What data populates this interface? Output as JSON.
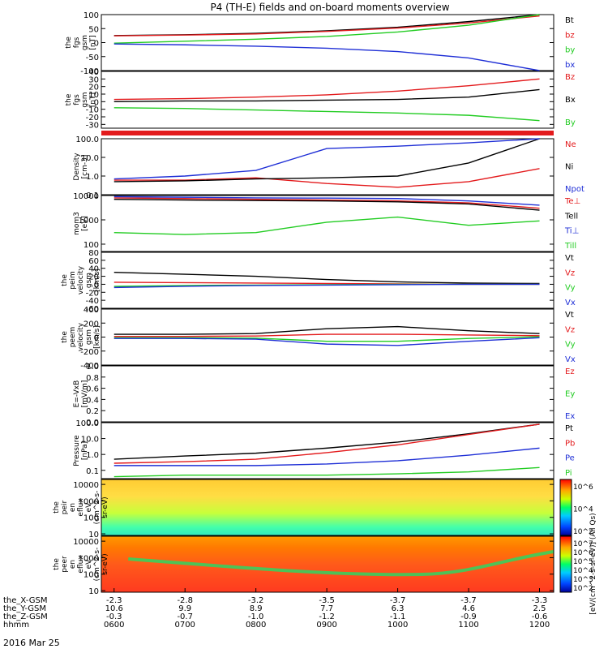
{
  "title": "P4 (TH-E) fields and on-board moments overview",
  "footer_date": "2016 Mar 25",
  "colors": {
    "black": "#000000",
    "red": "#e31a1c",
    "green": "#22cc22",
    "blue": "#1f2fd6",
    "spec_bg": "#ffcc33"
  },
  "chart_data": [
    {
      "id": "fgs_gsm",
      "type": "line",
      "ylabel_lines": [
        "the",
        "fgs",
        "gsm",
        "[nT]"
      ],
      "ylim": [
        -100,
        100
      ],
      "yticks": [
        "100",
        "50",
        "0",
        "-50",
        "-100"
      ],
      "ytick_values": [
        100,
        50,
        0,
        -50,
        -100
      ],
      "x_hours": [
        6.0,
        7.0,
        8.0,
        9.0,
        10.0,
        11.0,
        12.0
      ],
      "series": [
        {
          "name": "Bt",
          "color": "black",
          "values": [
            25,
            28,
            33,
            42,
            55,
            75,
            100
          ]
        },
        {
          "name": "bz",
          "color": "red",
          "values": [
            24,
            27,
            31,
            40,
            52,
            70,
            95
          ]
        },
        {
          "name": "by",
          "color": "green",
          "values": [
            -2,
            5,
            12,
            22,
            38,
            62,
            100
          ]
        },
        {
          "name": "bx",
          "color": "blue",
          "values": [
            -5,
            -8,
            -13,
            -20,
            -32,
            -55,
            -100
          ]
        }
      ]
    },
    {
      "id": "fgs_gsm_zoom",
      "type": "line",
      "ylabel_lines": [
        "the",
        "fgs",
        "gsm",
        "[nT]"
      ],
      "ylim": [
        -35,
        40
      ],
      "yticks": [
        "40",
        "30",
        "20",
        "10",
        "0",
        "-10",
        "-20",
        "-30"
      ],
      "ytick_values": [
        40,
        30,
        20,
        10,
        0,
        -10,
        -20,
        -30
      ],
      "x_hours": [
        6.0,
        7.0,
        8.0,
        9.0,
        10.0,
        11.0,
        12.0
      ],
      "series": [
        {
          "name": "Bz",
          "color": "red",
          "values": [
            3,
            4,
            6,
            9,
            14,
            21,
            30
          ]
        },
        {
          "name": "Bx",
          "color": "black",
          "values": [
            0,
            1,
            1,
            2,
            3,
            6,
            16
          ]
        },
        {
          "name": "By",
          "color": "green",
          "values": [
            -8,
            -9,
            -11,
            -13,
            -15,
            -18,
            -25
          ]
        }
      ]
    },
    {
      "id": "density",
      "type": "line",
      "log": true,
      "ylabel_lines": [
        "Density",
        "[cm-3]"
      ],
      "ylim": [
        0.1,
        100
      ],
      "yticks": [
        "100.0",
        "10.0",
        "1.0",
        "0.1"
      ],
      "ytick_values": [
        100,
        10,
        1,
        0.1
      ],
      "x_hours": [
        6.0,
        7.0,
        8.0,
        9.0,
        10.0,
        11.0,
        12.0
      ],
      "series": [
        {
          "name": "Ne",
          "color": "red",
          "values": [
            0.6,
            0.6,
            0.8,
            0.4,
            0.25,
            0.5,
            2.5
          ]
        },
        {
          "name": "Ni",
          "color": "black",
          "values": [
            0.5,
            0.55,
            0.7,
            0.8,
            1.0,
            5,
            100
          ]
        },
        {
          "name": "Npot",
          "color": "blue",
          "values": [
            0.7,
            1.0,
            2.0,
            30,
            40,
            60,
            120
          ]
        }
      ]
    },
    {
      "id": "temperature",
      "type": "line",
      "log": true,
      "ylabel_lines": [
        "mom3",
        "[eV]"
      ],
      "ylim": [
        50,
        10000
      ],
      "yticks": [
        "10000",
        "1000",
        "100"
      ],
      "ytick_values": [
        10000,
        1000,
        100
      ],
      "x_hours": [
        6.0,
        7.0,
        8.0,
        9.0,
        10.0,
        11.0,
        12.0
      ],
      "series": [
        {
          "name": "Te⊥",
          "color": "red",
          "values": [
            8000,
            7500,
            7000,
            6500,
            6000,
            5000,
            3000
          ]
        },
        {
          "name": "Tell",
          "color": "black",
          "values": [
            7000,
            6500,
            6200,
            6000,
            5500,
            4500,
            2500
          ]
        },
        {
          "name": "Ti⊥",
          "color": "blue",
          "values": [
            9000,
            8500,
            8000,
            7800,
            7500,
            6000,
            4000
          ]
        },
        {
          "name": "Till",
          "color": "green",
          "values": [
            300,
            250,
            300,
            800,
            1300,
            600,
            900
          ]
        }
      ]
    },
    {
      "id": "peim_velocity",
      "type": "line",
      "ylabel_lines": [
        "the",
        "peim",
        "velocity",
        "gsm",
        "[km/s]"
      ],
      "ylim": [
        -60,
        80
      ],
      "yticks": [
        "80",
        "60",
        "40",
        "20",
        "0",
        "-20",
        "-40",
        "-60"
      ],
      "ytick_values": [
        80,
        60,
        40,
        20,
        0,
        -20,
        -40,
        -60
      ],
      "x_hours": [
        6.0,
        7.0,
        8.0,
        9.0,
        10.0,
        11.0,
        12.0
      ],
      "series": [
        {
          "name": "Vt",
          "color": "black",
          "values": [
            30,
            25,
            20,
            12,
            6,
            3,
            2
          ]
        },
        {
          "name": "Vz",
          "color": "red",
          "values": [
            5,
            4,
            3,
            2,
            1,
            0,
            0
          ]
        },
        {
          "name": "Vy",
          "color": "green",
          "values": [
            -5,
            -3,
            -2,
            -1,
            0,
            0,
            0
          ]
        },
        {
          "name": "Vx",
          "color": "blue",
          "values": [
            -8,
            -5,
            -3,
            -2,
            -1,
            0,
            0
          ]
        }
      ]
    },
    {
      "id": "peem_velocity",
      "type": "line",
      "ylabel_lines": [
        "the",
        "peem",
        "velocity",
        "gsm",
        "[km/s]"
      ],
      "ylim": [
        -400,
        400
      ],
      "yticks": [
        "400",
        "200",
        "0",
        "-200",
        "-400"
      ],
      "ytick_values": [
        400,
        200,
        0,
        -200,
        -400
      ],
      "x_hours": [
        6.0,
        7.0,
        8.0,
        9.0,
        10.0,
        11.0,
        12.0
      ],
      "series": [
        {
          "name": "Vt",
          "color": "black",
          "values": [
            40,
            40,
            50,
            120,
            150,
            90,
            50
          ]
        },
        {
          "name": "Vz",
          "color": "red",
          "values": [
            10,
            10,
            15,
            40,
            40,
            30,
            20
          ]
        },
        {
          "name": "Vy",
          "color": "green",
          "values": [
            -10,
            -10,
            -15,
            -60,
            -60,
            -20,
            5
          ]
        },
        {
          "name": "Vx",
          "color": "blue",
          "values": [
            -20,
            -20,
            -30,
            -100,
            -120,
            -60,
            -10
          ]
        }
      ]
    },
    {
      "id": "efield",
      "type": "line",
      "ylabel_lines": [
        "E=-VxB",
        "[mV/m]"
      ],
      "ylim": [
        0.0,
        1.0
      ],
      "yticks": [
        "1.0",
        "0.8",
        "0.6",
        "0.4",
        "0.2",
        "0.0"
      ],
      "ytick_values": [
        1.0,
        0.8,
        0.6,
        0.4,
        0.2,
        0.0
      ],
      "x_hours": [],
      "series": [
        {
          "name": "Ez",
          "color": "red",
          "values": []
        },
        {
          "name": "Ey",
          "color": "green",
          "values": []
        },
        {
          "name": "Ex",
          "color": "blue",
          "values": []
        }
      ]
    },
    {
      "id": "pressure",
      "type": "line",
      "log": true,
      "ylabel_lines": [
        "Pressure",
        "[nPa]"
      ],
      "ylim": [
        0.03,
        100
      ],
      "yticks": [
        "100.0",
        "10.0",
        "1.0",
        "0.1"
      ],
      "ytick_values": [
        100,
        10,
        1,
        0.1
      ],
      "x_hours": [
        6.0,
        7.0,
        8.0,
        9.0,
        10.0,
        11.0,
        12.0
      ],
      "series": [
        {
          "name": "Pt",
          "color": "black",
          "values": [
            0.5,
            0.8,
            1.2,
            2.5,
            6,
            20,
            80
          ]
        },
        {
          "name": "Pb",
          "color": "red",
          "values": [
            0.28,
            0.35,
            0.5,
            1.3,
            4,
            18,
            80
          ]
        },
        {
          "name": "Pe",
          "color": "blue",
          "values": [
            0.2,
            0.2,
            0.2,
            0.25,
            0.4,
            0.9,
            2.5
          ]
        },
        {
          "name": "Pi",
          "color": "green",
          "values": [
            0.04,
            0.05,
            0.05,
            0.05,
            0.06,
            0.08,
            0.15
          ]
        }
      ]
    },
    {
      "id": "peir_spectrum",
      "type": "heatmap",
      "ylabel_lines": [
        "the",
        "peir",
        "en",
        "eflux",
        "eV",
        "(cm^2-s-",
        "sr-eV)"
      ],
      "ylim": [
        8,
        20000
      ],
      "yticks": [
        "10000",
        "1000",
        "100",
        "10"
      ],
      "ytick_values": [
        10000,
        1000,
        100,
        10
      ],
      "colorbar_ticks": [
        "10^6",
        "10^4",
        "10^2"
      ]
    },
    {
      "id": "peer_spectrum",
      "type": "heatmap",
      "ylabel_lines": [
        "the",
        "peer",
        "en",
        "eflux",
        "eV",
        "(cm^2-s-",
        "sr-eV)"
      ],
      "ylim": [
        8,
        20000
      ],
      "yticks": [
        "10000",
        "1000",
        "100",
        "10"
      ],
      "ytick_values": [
        10000,
        1000,
        100,
        10
      ],
      "colorbar_ticks": [
        "10^7",
        "10^6",
        "10^5",
        "10^4",
        "10^3",
        "10^2"
      ]
    }
  ],
  "colorbar_label": "[eV/(cm^2-s-sr-eV)] (All Qs)",
  "xaxis": {
    "rows": [
      {
        "label": "the_X-GSM",
        "values": [
          "-2.3",
          "-2.8",
          "-3.2",
          "-3.5",
          "-3.7",
          "-3.7",
          "-3.3"
        ]
      },
      {
        "label": "the_Y-GSM",
        "values": [
          "10.6",
          "9.9",
          "8.9",
          "7.7",
          "6.3",
          "4.6",
          "2.5"
        ]
      },
      {
        "label": "the_Z-GSM",
        "values": [
          "-0.3",
          "-0.7",
          "-1.0",
          "-1.2",
          "-1.1",
          "-0.9",
          "-0.6"
        ]
      },
      {
        "label": "hhmm",
        "values": [
          "0600",
          "0700",
          "0800",
          "0900",
          "1000",
          "1100",
          "1200"
        ]
      }
    ]
  }
}
